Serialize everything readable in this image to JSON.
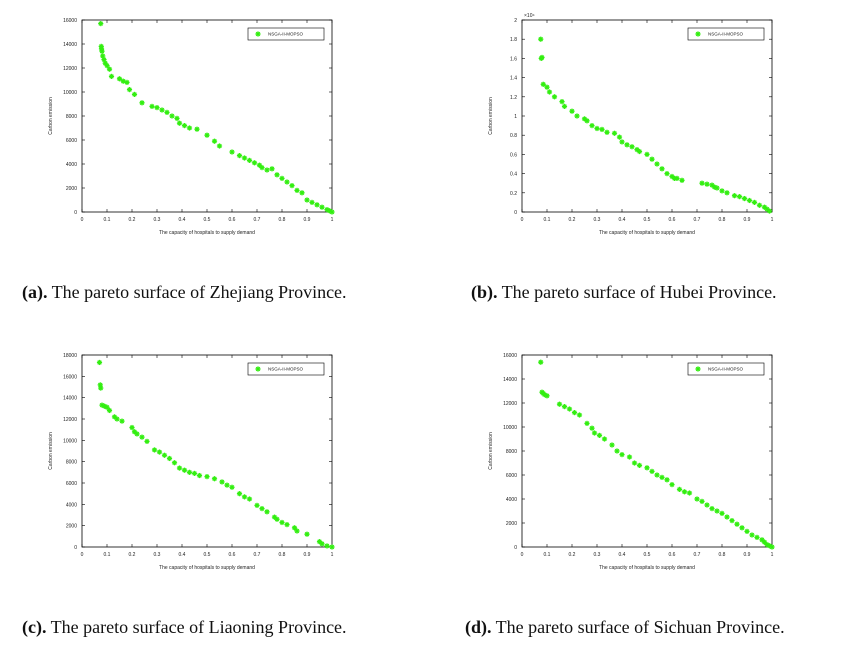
{
  "chart_data": [
    {
      "type": "scatter",
      "id": "a",
      "xlabel": "The capacity of hospitals to supply demand",
      "ylabel": "Carbon emission",
      "legend": "NSGA-II-MOPSO",
      "legend_position": "top-right",
      "xlim": [
        0,
        1
      ],
      "ylim": [
        0,
        16000
      ],
      "xticks": [
        "0",
        "0.1",
        "0.2",
        "0.3",
        "0.4",
        "0.5",
        "0.6",
        "0.7",
        "0.8",
        "0.9",
        "1"
      ],
      "yticks": [
        "0",
        "2000",
        "4000",
        "6000",
        "8000",
        "10000",
        "12000",
        "14000",
        "16000"
      ],
      "y_multiplier": "",
      "caption_label": "(a).",
      "caption_text": " The pareto surface of Zhejiang Province.",
      "x": [
        0.075,
        0.077,
        0.078,
        0.08,
        0.083,
        0.088,
        0.093,
        0.1,
        0.11,
        0.118,
        0.15,
        0.165,
        0.18,
        0.19,
        0.21,
        0.24,
        0.28,
        0.3,
        0.32,
        0.34,
        0.36,
        0.38,
        0.39,
        0.41,
        0.43,
        0.46,
        0.5,
        0.53,
        0.55,
        0.6,
        0.63,
        0.65,
        0.67,
        0.69,
        0.71,
        0.72,
        0.74,
        0.76,
        0.78,
        0.8,
        0.82,
        0.84,
        0.86,
        0.88,
        0.9,
        0.92,
        0.94,
        0.96,
        0.98,
        0.99,
        1.0
      ],
      "y": [
        15700,
        13800,
        13600,
        13400,
        13000,
        12700,
        12400,
        12200,
        11900,
        11300,
        11100,
        10900,
        10800,
        10200,
        9800,
        9100,
        8800,
        8700,
        8500,
        8300,
        8000,
        7800,
        7400,
        7200,
        7000,
        6900,
        6400,
        5900,
        5500,
        5000,
        4700,
        4500,
        4300,
        4100,
        3900,
        3700,
        3500,
        3600,
        3100,
        2800,
        2500,
        2200,
        1800,
        1600,
        1000,
        800,
        600,
        400,
        200,
        100,
        0
      ]
    },
    {
      "type": "scatter",
      "id": "b",
      "xlabel": "The capacity of hospitals to supply demand",
      "ylabel": "Carbon emission",
      "legend": "NSGA-II-MOPSO",
      "legend_position": "top-right",
      "xlim": [
        0,
        1
      ],
      "ylim": [
        0,
        2
      ],
      "xticks": [
        "0",
        "0.1",
        "0.2",
        "0.3",
        "0.4",
        "0.5",
        "0.6",
        "0.7",
        "0.8",
        "0.9",
        "1"
      ],
      "yticks": [
        "0",
        "0.2",
        "0.4",
        "0.6",
        "0.8",
        "1",
        "1.2",
        "1.4",
        "1.6",
        "1.8",
        "2"
      ],
      "y_multiplier": "×10⁴",
      "caption_label": "(b).",
      "caption_text": " The pareto surface of Hubei Province.",
      "x": [
        0.075,
        0.077,
        0.08,
        0.085,
        0.1,
        0.11,
        0.13,
        0.16,
        0.17,
        0.2,
        0.22,
        0.25,
        0.26,
        0.28,
        0.3,
        0.32,
        0.34,
        0.37,
        0.39,
        0.4,
        0.42,
        0.44,
        0.46,
        0.47,
        0.5,
        0.52,
        0.54,
        0.56,
        0.58,
        0.6,
        0.61,
        0.62,
        0.64,
        0.72,
        0.74,
        0.76,
        0.77,
        0.78,
        0.8,
        0.82,
        0.85,
        0.87,
        0.89,
        0.91,
        0.93,
        0.95,
        0.97,
        0.98,
        0.99
      ],
      "y": [
        1.8,
        1.6,
        1.61,
        1.33,
        1.3,
        1.25,
        1.2,
        1.15,
        1.1,
        1.05,
        1.0,
        0.97,
        0.95,
        0.9,
        0.87,
        0.86,
        0.83,
        0.82,
        0.78,
        0.73,
        0.7,
        0.68,
        0.65,
        0.63,
        0.6,
        0.55,
        0.5,
        0.45,
        0.4,
        0.37,
        0.35,
        0.35,
        0.33,
        0.3,
        0.29,
        0.28,
        0.26,
        0.25,
        0.22,
        0.2,
        0.17,
        0.16,
        0.14,
        0.12,
        0.1,
        0.07,
        0.05,
        0.03,
        0.01
      ]
    },
    {
      "type": "scatter",
      "id": "c",
      "xlabel": "The capacity of hospitals to supply demand",
      "ylabel": "Carbon emission",
      "legend": "NSGA-II-MOPSO",
      "legend_position": "top-right",
      "xlim": [
        0,
        1
      ],
      "ylim": [
        0,
        18000
      ],
      "xticks": [
        "0",
        "0.1",
        "0.2",
        "0.3",
        "0.4",
        "0.5",
        "0.6",
        "0.7",
        "0.8",
        "0.9",
        "1"
      ],
      "yticks": [
        "0",
        "2000",
        "4000",
        "6000",
        "8000",
        "10000",
        "12000",
        "14000",
        "16000",
        "18000"
      ],
      "y_multiplier": "",
      "caption_label": "(c).",
      "caption_text": " The pareto surface of Liaoning Province.",
      "x": [
        0.07,
        0.073,
        0.075,
        0.08,
        0.09,
        0.1,
        0.11,
        0.13,
        0.14,
        0.16,
        0.2,
        0.21,
        0.22,
        0.24,
        0.26,
        0.29,
        0.31,
        0.33,
        0.35,
        0.37,
        0.39,
        0.41,
        0.43,
        0.45,
        0.47,
        0.5,
        0.53,
        0.56,
        0.58,
        0.6,
        0.63,
        0.65,
        0.67,
        0.7,
        0.72,
        0.74,
        0.77,
        0.78,
        0.8,
        0.82,
        0.85,
        0.86,
        0.9,
        0.95,
        0.96,
        0.98,
        1.0
      ],
      "y": [
        17300,
        15200,
        14900,
        13300,
        13200,
        13100,
        12800,
        12200,
        12000,
        11800,
        11200,
        10800,
        10600,
        10300,
        9900,
        9100,
        8900,
        8600,
        8300,
        7900,
        7400,
        7200,
        7000,
        6900,
        6700,
        6600,
        6400,
        6100,
        5800,
        5600,
        5000,
        4700,
        4500,
        3900,
        3600,
        3300,
        2800,
        2600,
        2300,
        2100,
        1800,
        1500,
        1200,
        500,
        300,
        100,
        0
      ]
    },
    {
      "type": "scatter",
      "id": "d",
      "xlabel": "The capacity of hospitals to supply demand",
      "ylabel": "Carbon emission",
      "legend": "NSGA-II-MOPSO",
      "legend_position": "top-right",
      "xlim": [
        0,
        1
      ],
      "ylim": [
        0,
        16000
      ],
      "xticks": [
        "0",
        "0.1",
        "0.2",
        "0.3",
        "0.4",
        "0.5",
        "0.6",
        "0.7",
        "0.8",
        "0.9",
        "1"
      ],
      "yticks": [
        "0",
        "2000",
        "4000",
        "6000",
        "8000",
        "10000",
        "12000",
        "14000",
        "16000"
      ],
      "y_multiplier": "",
      "caption_label": "(d).",
      "caption_text": " The pareto surface of Sichuan Province.",
      "x": [
        0.075,
        0.08,
        0.085,
        0.09,
        0.1,
        0.15,
        0.17,
        0.19,
        0.21,
        0.23,
        0.26,
        0.28,
        0.29,
        0.31,
        0.33,
        0.36,
        0.38,
        0.4,
        0.43,
        0.45,
        0.47,
        0.5,
        0.52,
        0.54,
        0.56,
        0.58,
        0.6,
        0.63,
        0.65,
        0.67,
        0.7,
        0.72,
        0.74,
        0.76,
        0.78,
        0.8,
        0.82,
        0.84,
        0.86,
        0.88,
        0.9,
        0.92,
        0.94,
        0.96,
        0.97,
        0.98,
        0.99,
        1.0
      ],
      "y": [
        15400,
        12900,
        12800,
        12700,
        12600,
        11900,
        11700,
        11500,
        11200,
        11000,
        10300,
        9900,
        9500,
        9300,
        9000,
        8500,
        8000,
        7700,
        7500,
        7000,
        6800,
        6600,
        6300,
        6000,
        5800,
        5600,
        5200,
        4800,
        4600,
        4500,
        4000,
        3800,
        3500,
        3200,
        3000,
        2800,
        2500,
        2200,
        1900,
        1600,
        1300,
        1000,
        800,
        600,
        400,
        200,
        100,
        0
      ]
    }
  ]
}
